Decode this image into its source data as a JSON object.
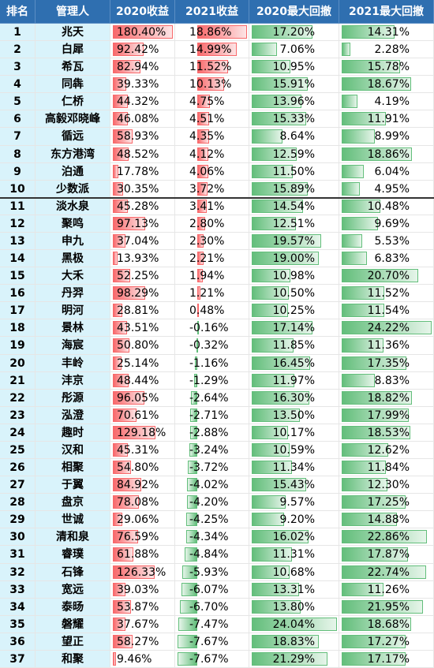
{
  "table": {
    "header": [
      "排名",
      "管理人",
      "2020收益",
      "2021收益",
      "2020最大回撤",
      "2021最大回撤"
    ],
    "rows": [
      [
        "1",
        "兆天",
        "180.40%",
        "18.86%",
        "17.20%",
        "14.31%"
      ],
      [
        "2",
        "白犀",
        "92.42%",
        "14.99%",
        "7.06%",
        "2.28%"
      ],
      [
        "3",
        "希瓦",
        "82.94%",
        "11.52%",
        "10.95%",
        "15.78%"
      ],
      [
        "4",
        "同犇",
        "39.33%",
        "10.13%",
        "15.91%",
        "18.67%"
      ],
      [
        "5",
        "仁桥",
        "44.32%",
        "4.75%",
        "13.96%",
        "4.19%"
      ],
      [
        "6",
        "高毅邓晓峰",
        "46.08%",
        "4.51%",
        "15.33%",
        "11.91%"
      ],
      [
        "7",
        "循远",
        "58.93%",
        "4.35%",
        "8.64%",
        "8.99%"
      ],
      [
        "8",
        "东方港湾",
        "48.52%",
        "4.12%",
        "12.59%",
        "18.86%"
      ],
      [
        "9",
        "泊通",
        "17.78%",
        "4.06%",
        "11.50%",
        "6.04%"
      ],
      [
        "10",
        "少数派",
        "30.35%",
        "3.72%",
        "15.89%",
        "4.95%"
      ],
      [
        "11",
        "淡水泉",
        "45.28%",
        "3.41%",
        "14.54%",
        "10.48%"
      ],
      [
        "12",
        "聚鸣",
        "97.13%",
        "2.80%",
        "12.51%",
        "9.69%"
      ],
      [
        "13",
        "申九",
        "37.04%",
        "2.30%",
        "19.57%",
        "5.53%"
      ],
      [
        "14",
        "黑极",
        "13.93%",
        "2.21%",
        "19.00%",
        "6.83%"
      ],
      [
        "15",
        "大禾",
        "52.25%",
        "1.94%",
        "10.98%",
        "20.70%"
      ],
      [
        "16",
        "丹羿",
        "98.29%",
        "1.21%",
        "10.50%",
        "11.52%"
      ],
      [
        "17",
        "明河",
        "28.81%",
        "0.48%",
        "10.25%",
        "11.54%"
      ],
      [
        "18",
        "景林",
        "43.51%",
        "-0.16%",
        "17.14%",
        "24.22%"
      ],
      [
        "19",
        "海宸",
        "50.80%",
        "-0.32%",
        "11.85%",
        "11.36%"
      ],
      [
        "20",
        "丰岭",
        "25.14%",
        "-1.16%",
        "16.45%",
        "17.35%"
      ],
      [
        "21",
        "沣京",
        "48.44%",
        "-1.29%",
        "11.97%",
        "8.83%"
      ],
      [
        "22",
        "彤源",
        "96.05%",
        "-2.64%",
        "16.30%",
        "18.82%"
      ],
      [
        "23",
        "泓澄",
        "70.61%",
        "-2.71%",
        "13.50%",
        "17.99%"
      ],
      [
        "24",
        "趣时",
        "129.18%",
        "-2.88%",
        "10.17%",
        "18.53%"
      ],
      [
        "25",
        "汉和",
        "45.31%",
        "-3.24%",
        "10.59%",
        "12.62%"
      ],
      [
        "26",
        "相聚",
        "54.80%",
        "-3.72%",
        "11.34%",
        "11.84%"
      ],
      [
        "27",
        "于翼",
        "84.92%",
        "-4.02%",
        "15.43%",
        "12.30%"
      ],
      [
        "28",
        "盘京",
        "78.08%",
        "-4.20%",
        "9.57%",
        "17.25%"
      ],
      [
        "29",
        "世诚",
        "29.06%",
        "-4.25%",
        "9.20%",
        "14.88%"
      ],
      [
        "30",
        "清和泉",
        "76.59%",
        "-4.34%",
        "16.02%",
        "22.86%"
      ],
      [
        "31",
        "睿璞",
        "61.88%",
        "-4.84%",
        "11.31%",
        "17.87%"
      ],
      [
        "32",
        "石锋",
        "126.33%",
        "-5.93%",
        "10.68%",
        "22.74%"
      ],
      [
        "33",
        "宽远",
        "39.03%",
        "-6.07%",
        "13.31%",
        "11.26%"
      ],
      [
        "34",
        "泰旸",
        "53.87%",
        "-6.70%",
        "13.80%",
        "21.95%"
      ],
      [
        "35",
        "磐耀",
        "37.67%",
        "-7.47%",
        "24.04%",
        "18.68%"
      ],
      [
        "36",
        "望正",
        "58.27%",
        "-7.67%",
        "18.83%",
        "17.27%"
      ],
      [
        "37",
        "和聚",
        "9.46%",
        "-7.67%",
        "21.29%",
        "17.17%"
      ]
    ]
  }
}
